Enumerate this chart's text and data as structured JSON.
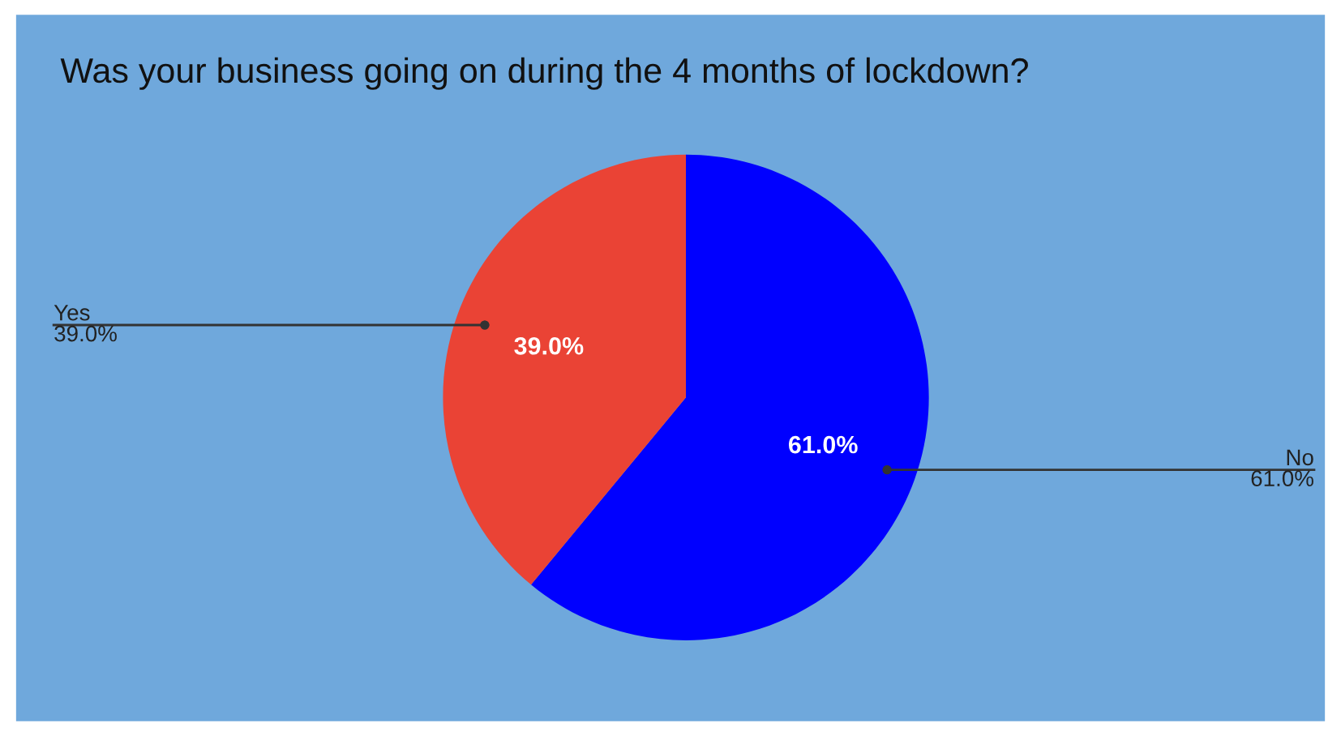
{
  "chart_data": {
    "type": "pie",
    "title": "Was your business going on during the 4 months of lockdown?",
    "categories": [
      "No",
      "Yes"
    ],
    "values": [
      61.0,
      39.0
    ],
    "colors": [
      "#0000ff",
      "#ea4335"
    ],
    "value_labels": [
      "61.0%",
      "39.0%"
    ]
  }
}
